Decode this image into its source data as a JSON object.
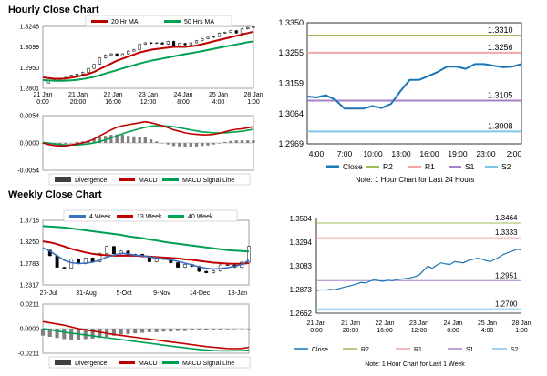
{
  "sections": {
    "hourly_title": "Hourly Close Chart",
    "weekly_title": "Weekly Close Chart"
  },
  "colors": {
    "ma20": "#c00000",
    "ma50": "#00a050",
    "ma4": "#3a70c0",
    "r2": "#9bbb59",
    "r1": "#f4a6a6",
    "s1": "#a680c8",
    "s2": "#7fc6e8",
    "close": "#1b76b8",
    "hist": "#808080",
    "frame": "#8a8a8a",
    "legend_frame": "#bfbfbf"
  },
  "chart_data": [
    {
      "id": "hourly_main",
      "type": "line",
      "legend": [
        "20 Hr MA",
        "50 Hrs MA"
      ],
      "y_ticks": [
        "1.3248",
        "1.3099",
        "1.2950",
        "1.2801"
      ],
      "ylim": [
        1.2801,
        1.3248
      ],
      "x_ticks": [
        [
          "21 Jan",
          "0:00"
        ],
        [
          "21 Jan",
          "20:00"
        ],
        [
          "22 Jan",
          "16:00"
        ],
        [
          "23 Jan",
          "12:00"
        ],
        [
          "24 Jan",
          "8:00"
        ],
        [
          "25 Jan",
          "4:00"
        ],
        [
          "28 Jan",
          "1:00"
        ]
      ],
      "series": [
        {
          "name": "Close",
          "values": [
            1.284,
            1.2855,
            1.2865,
            1.287,
            1.288,
            1.2895,
            1.2905,
            1.2915,
            1.2945,
            1.2975,
            1.302,
            1.304,
            1.305,
            1.3035,
            1.305,
            1.307,
            1.308,
            1.312,
            1.313,
            1.3125,
            1.313,
            1.312,
            1.314,
            1.311,
            1.3125,
            1.3115,
            1.313,
            1.3145,
            1.316,
            1.317,
            1.3175,
            1.32,
            1.3205,
            1.3218,
            1.32,
            1.323,
            1.324,
            1.3245
          ]
        },
        {
          "name": "20 Hr MA",
          "values": [
            1.288,
            1.2875,
            1.287,
            1.287,
            1.2872,
            1.2878,
            1.2885,
            1.2895,
            1.2905,
            1.292,
            1.294,
            1.296,
            1.298,
            1.3,
            1.3015,
            1.303,
            1.3045,
            1.306,
            1.307,
            1.308,
            1.3085,
            1.309,
            1.3095,
            1.31,
            1.31,
            1.31,
            1.3105,
            1.311,
            1.312,
            1.313,
            1.314,
            1.315,
            1.316,
            1.317,
            1.318,
            1.319,
            1.32,
            1.321
          ]
        },
        {
          "name": "50 Hrs MA",
          "values": [
            1.286,
            1.2858,
            1.2856,
            1.2855,
            1.2856,
            1.2858,
            1.2862,
            1.2868,
            1.2875,
            1.2884,
            1.2895,
            1.2908,
            1.292,
            1.2932,
            1.2945,
            1.2957,
            1.2968,
            1.298,
            1.299,
            1.3,
            1.3008,
            1.3016,
            1.3024,
            1.3032,
            1.304,
            1.3048,
            1.3055,
            1.3062,
            1.307,
            1.3078,
            1.3086,
            1.3094,
            1.3102,
            1.311,
            1.3118,
            1.3126,
            1.3134,
            1.314
          ]
        }
      ]
    },
    {
      "id": "hourly_macd",
      "type": "line",
      "y_ticks": [
        "0.0054",
        "0.0000",
        "-0.0054"
      ],
      "ylim": [
        -0.0054,
        0.0054
      ],
      "legend": [
        "Divergence",
        "MACD",
        "MACD Signal Line"
      ],
      "series": [
        {
          "name": "MACD",
          "values": [
            0.0,
            -0.0003,
            -0.0005,
            -0.0006,
            -0.0006,
            -0.0004,
            -0.0002,
            0.0,
            0.0003,
            0.0008,
            0.0014,
            0.002,
            0.0026,
            0.0031,
            0.0034,
            0.0036,
            0.0038,
            0.004,
            0.0042,
            0.004,
            0.0037,
            0.0034,
            0.003,
            0.0026,
            0.0023,
            0.002,
            0.0018,
            0.0017,
            0.0016,
            0.0016,
            0.0017,
            0.0019,
            0.0022,
            0.0025,
            0.0027,
            0.0028,
            0.003,
            0.0032
          ]
        },
        {
          "name": "MACD Signal Line",
          "values": [
            0.0001,
            0.0,
            -0.0002,
            -0.0003,
            -0.0004,
            -0.0004,
            -0.0004,
            -0.0003,
            -0.0002,
            0.0,
            0.0003,
            0.0006,
            0.001,
            0.0014,
            0.0018,
            0.0022,
            0.0025,
            0.0028,
            0.0031,
            0.0033,
            0.0034,
            0.0034,
            0.0033,
            0.0032,
            0.003,
            0.0028,
            0.0026,
            0.0024,
            0.0022,
            0.0021,
            0.002,
            0.002,
            0.002,
            0.0021,
            0.0022,
            0.0023,
            0.0025,
            0.0027
          ]
        },
        {
          "name": "Divergence",
          "values": [
            -0.0001,
            -0.0003,
            -0.0003,
            -0.0003,
            -0.0002,
            0.0,
            0.0002,
            0.0003,
            0.0005,
            0.0008,
            0.0011,
            0.0014,
            0.0016,
            0.0017,
            0.0016,
            0.0014,
            0.0013,
            0.0012,
            0.0011,
            0.0007,
            0.0003,
            0.0,
            -0.0003,
            -0.0006,
            -0.0007,
            -0.0008,
            -0.0008,
            -0.0007,
            -0.0006,
            -0.0005,
            -0.0003,
            -0.0001,
            0.0002,
            0.0004,
            0.0005,
            0.0005,
            0.0005,
            0.0005
          ]
        }
      ]
    },
    {
      "id": "hourly_levels",
      "type": "line",
      "y_ticks": [
        "1.3350",
        "1.3255",
        "1.3159",
        "1.3064",
        "1.2969"
      ],
      "ylim": [
        1.2969,
        1.335
      ],
      "x_ticks": [
        "4:00",
        "7:00",
        "10:00",
        "13:00",
        "16:00",
        "19:00",
        "23:00",
        "2:00"
      ],
      "levels": [
        {
          "name": "R2",
          "value": 1.331,
          "label": "1.3310"
        },
        {
          "name": "R1",
          "value": 1.3256,
          "label": "1.3256"
        },
        {
          "name": "S1",
          "value": 1.3105,
          "label": "1.3105"
        },
        {
          "name": "S2",
          "value": 1.3008,
          "label": "1.3008"
        }
      ],
      "series": [
        {
          "name": "Close",
          "values": [
            1.3118,
            1.3115,
            1.3122,
            1.3108,
            1.308,
            1.308,
            1.308,
            1.3088,
            1.3082,
            1.3095,
            1.3135,
            1.317,
            1.317,
            1.3182,
            1.3195,
            1.3212,
            1.3212,
            1.3205,
            1.322,
            1.322,
            1.3215,
            1.321,
            1.3212,
            1.322
          ]
        }
      ],
      "legend": [
        "Close",
        "R2",
        "R1",
        "S1",
        "S2"
      ],
      "note": "Note: 1 Hour Chart for Last 24 Hours"
    },
    {
      "id": "weekly_main",
      "type": "line",
      "legend": [
        "4 Week",
        "13 Week",
        "40 Week"
      ],
      "y_ticks": [
        "1.3716",
        "1.3250",
        "1.2783",
        "1.2317"
      ],
      "ylim": [
        1.2317,
        1.3716
      ],
      "x_ticks": [
        "27-Jul",
        "31-Aug",
        "5-Oct",
        "9-Nov",
        "14-Dec",
        "18-Jan"
      ],
      "series": [
        {
          "name": "Close",
          "values": [
            1.307,
            1.295,
            1.27,
            1.268,
            1.288,
            1.278,
            1.29,
            1.282,
            1.3,
            1.315,
            1.299,
            1.305,
            1.295,
            1.298,
            1.293,
            1.282,
            1.288,
            1.288,
            1.28,
            1.27,
            1.276,
            1.272,
            1.261,
            1.258,
            1.262,
            1.275,
            1.275,
            1.27,
            1.281,
            1.315
          ]
        },
        {
          "name": "4 Week",
          "values": [
            1.312,
            1.305,
            1.295,
            1.285,
            1.28,
            1.278,
            1.279,
            1.281,
            1.285,
            1.292,
            1.296,
            1.3,
            1.299,
            1.296,
            1.295,
            1.292,
            1.29,
            1.288,
            1.286,
            1.283,
            1.279,
            1.275,
            1.271,
            1.268,
            1.266,
            1.267,
            1.269,
            1.272,
            1.276,
            1.285
          ]
        },
        {
          "name": "13 Week",
          "values": [
            1.326,
            1.324,
            1.32,
            1.315,
            1.31,
            1.306,
            1.302,
            1.299,
            1.297,
            1.296,
            1.295,
            1.295,
            1.295,
            1.295,
            1.294,
            1.293,
            1.292,
            1.291,
            1.29,
            1.289,
            1.287,
            1.286,
            1.284,
            1.282,
            1.28,
            1.279,
            1.278,
            1.2775,
            1.2775,
            1.279
          ]
        },
        {
          "name": "40 Week",
          "values": [
            1.359,
            1.358,
            1.357,
            1.356,
            1.354,
            1.352,
            1.35,
            1.348,
            1.346,
            1.344,
            1.342,
            1.34,
            1.337,
            1.335,
            1.333,
            1.33,
            1.328,
            1.325,
            1.323,
            1.321,
            1.319,
            1.317,
            1.315,
            1.313,
            1.311,
            1.309,
            1.307,
            1.306,
            1.305,
            1.304
          ]
        }
      ]
    },
    {
      "id": "weekly_macd",
      "type": "line",
      "y_ticks": [
        "0.0211",
        "0.0000",
        "-0.0211"
      ],
      "ylim": [
        -0.0211,
        0.0211
      ],
      "legend": [
        "Divergence",
        "MACD",
        "MACD Signal Line"
      ],
      "series": [
        {
          "name": "MACD",
          "values": [
            0.006,
            0.005,
            0.004,
            0.003,
            0.0015,
            0.0,
            -0.001,
            -0.002,
            -0.003,
            -0.004,
            -0.005,
            -0.0058,
            -0.0066,
            -0.0074,
            -0.0082,
            -0.009,
            -0.0098,
            -0.0106,
            -0.0114,
            -0.0122,
            -0.013,
            -0.0138,
            -0.0146,
            -0.0154,
            -0.016,
            -0.0166,
            -0.017,
            -0.0172,
            -0.017,
            -0.016
          ]
        },
        {
          "name": "MACD Signal Line",
          "values": [
            0.0,
            -0.001,
            -0.002,
            -0.003,
            -0.0038,
            -0.0046,
            -0.0054,
            -0.0062,
            -0.007,
            -0.0078,
            -0.0086,
            -0.0094,
            -0.0102,
            -0.011,
            -0.0118,
            -0.0126,
            -0.0134,
            -0.0142,
            -0.015,
            -0.0158,
            -0.0165,
            -0.0172,
            -0.0178,
            -0.0184,
            -0.0188,
            -0.019,
            -0.0191,
            -0.019,
            -0.0188,
            -0.0185
          ]
        },
        {
          "name": "Divergence",
          "values": [
            -0.006,
            -0.007,
            -0.008,
            -0.009,
            -0.0095,
            -0.0095,
            -0.009,
            -0.0085,
            -0.008,
            -0.007,
            -0.006,
            -0.005,
            -0.0045,
            -0.004,
            -0.0035,
            -0.003,
            -0.003,
            -0.0025,
            -0.0025,
            -0.002,
            -0.002,
            -0.0015,
            -0.0015,
            -0.0012,
            -0.001,
            -0.0008,
            -0.0006,
            -0.0005,
            -0.0003,
            -0.0002
          ]
        }
      ]
    },
    {
      "id": "weekly_levels",
      "type": "line",
      "y_ticks": [
        "1.3504",
        "1.3294",
        "1.3083",
        "1.2873",
        "1.2662"
      ],
      "ylim": [
        1.2662,
        1.3504
      ],
      "x_ticks": [
        [
          "21 Jan",
          "0:00"
        ],
        [
          "21 Jan",
          "20:00"
        ],
        [
          "22 Jan",
          "16:00"
        ],
        [
          "23 Jan",
          "12:00"
        ],
        [
          "24 Jan",
          "8:00"
        ],
        [
          "25 Jan",
          "4:00"
        ],
        [
          "28 Jan",
          "1:00"
        ]
      ],
      "levels": [
        {
          "name": "R2",
          "value": 1.3464,
          "label": "1.3464"
        },
        {
          "name": "R1",
          "value": 1.3333,
          "label": "1.3333"
        },
        {
          "name": "S1",
          "value": 1.2951,
          "label": "1.2951"
        },
        {
          "name": "S2",
          "value": 1.27,
          "label": "1.2700"
        }
      ],
      "series": [
        {
          "name": "Close",
          "values": [
            1.2862,
            1.287,
            1.2866,
            1.2875,
            1.287,
            1.288,
            1.289,
            1.29,
            1.291,
            1.292,
            1.2935,
            1.293,
            1.2945,
            1.296,
            1.295,
            1.2945,
            1.2955,
            1.295,
            1.296,
            1.2965,
            1.297,
            1.2975,
            1.2985,
            1.3,
            1.304,
            1.308,
            1.306,
            1.309,
            1.311,
            1.31,
            1.3095,
            1.312,
            1.3115,
            1.311,
            1.313,
            1.314,
            1.315,
            1.3145,
            1.313,
            1.312,
            1.314,
            1.316,
            1.3185,
            1.32,
            1.3215,
            1.323,
            1.3225
          ]
        }
      ],
      "legend": [
        "Close",
        "R2",
        "R1",
        "S1",
        "S2"
      ],
      "note": "Note: 1 Hour Chart for Last 1 Week"
    }
  ]
}
